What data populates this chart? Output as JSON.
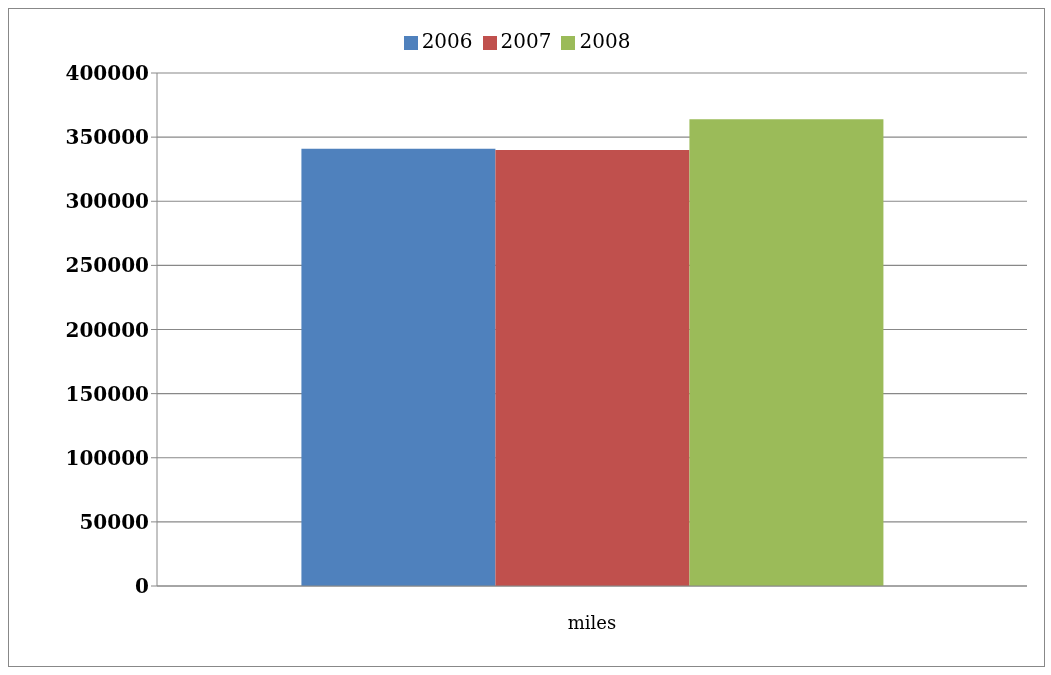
{
  "chart_data": {
    "type": "bar",
    "categories": [
      "miles"
    ],
    "series": [
      {
        "name": "2006",
        "color": "#4f81bd",
        "values": [
          341000
        ]
      },
      {
        "name": "2007",
        "color": "#c0504d",
        "values": [
          340000
        ]
      },
      {
        "name": "2008",
        "color": "#9bbb59",
        "values": [
          364000
        ]
      }
    ],
    "ylim": [
      0,
      400000
    ],
    "yticks": [
      0,
      50000,
      100000,
      150000,
      200000,
      250000,
      300000,
      350000,
      400000
    ],
    "grid": "y",
    "legend": "top"
  }
}
